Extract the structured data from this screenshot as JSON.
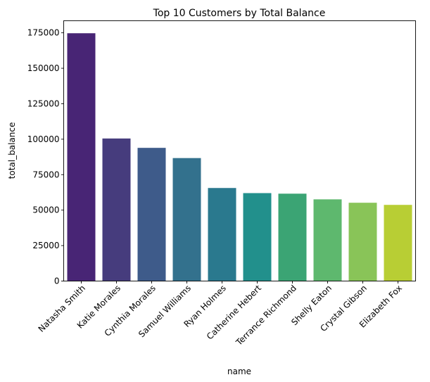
{
  "chart_data": {
    "type": "bar",
    "title": "Top 10 Customers by Total Balance",
    "xlabel": "name",
    "ylabel": "total_balance",
    "categories": [
      "Natasha Smith",
      "Katie Morales",
      "Cynthia Morales",
      "Samuel Williams",
      "Ryan Holmes",
      "Catherine Hebert",
      "Terrance Richmond",
      "Shelly Eaton",
      "Crystal Gibson",
      "Elizabeth Fox"
    ],
    "values": [
      174700,
      100500,
      93900,
      86700,
      65600,
      62000,
      61600,
      57600,
      55200,
      53700
    ],
    "colors": [
      "#482575",
      "#463c7d",
      "#3e5b8a",
      "#33718d",
      "#2a798e",
      "#22908c",
      "#3ba474",
      "#5eb86e",
      "#89c458",
      "#b8ce34"
    ],
    "yticks": [
      0,
      25000,
      50000,
      75000,
      100000,
      125000,
      150000,
      175000
    ],
    "ylim": [
      0,
      183500
    ],
    "grid": false,
    "legend": "none"
  }
}
